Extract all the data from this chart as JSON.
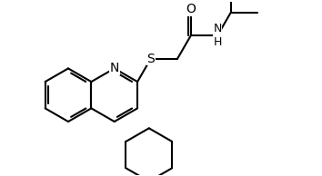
{
  "lw": 1.5,
  "fs": 10,
  "bg": "#ffffff",
  "bc": "#000000",
  "xlim": [
    -0.5,
    11.0
  ],
  "ylim": [
    -1.0,
    5.5
  ],
  "bl": 1.0
}
